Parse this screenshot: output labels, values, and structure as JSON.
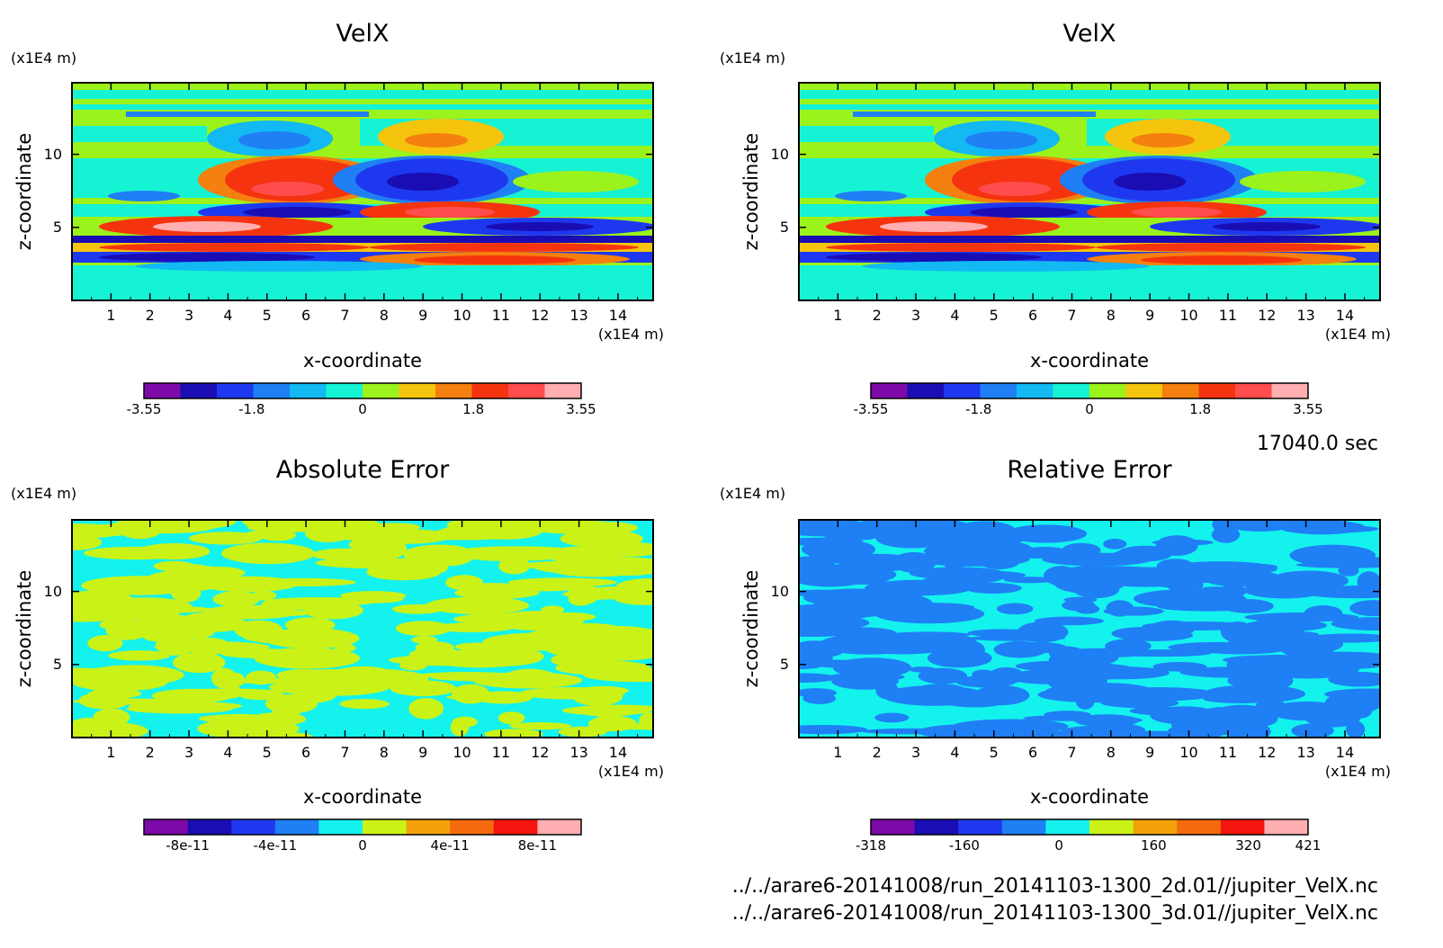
{
  "time_label": "17040.0 sec",
  "files": [
    "../../arare6-20141008/run_20141103-1300_2d.01//jupiter_VelX.nc",
    "../../arare6-20141008/run_20141103-1300_3d.01//jupiter_VelX.nc"
  ],
  "chart_data": [
    {
      "type": "heatmap",
      "title": "VelX",
      "xlabel": "x-coordinate",
      "ylabel": "z-coordinate",
      "x_unit": "(x1E4 m)",
      "y_unit": "(x1E4 m)",
      "xlim": [
        0,
        14.9
      ],
      "ylim": [
        0,
        14.9
      ],
      "x_ticks": [
        1,
        2,
        3,
        4,
        5,
        6,
        7,
        8,
        9,
        10,
        11,
        12,
        13,
        14
      ],
      "y_ticks": [
        5,
        10
      ],
      "colorbar": {
        "ticks": [
          "-3.55",
          "-1.8",
          "0",
          "1.8",
          "3.55"
        ],
        "min": -3.55,
        "max": 3.55,
        "colors": [
          "#7d0aa8",
          "#1a0db3",
          "#1e38f0",
          "#1f7ff5",
          "#12b9f2",
          "#15f2d4",
          "#9cf21b",
          "#f4c50c",
          "#f4800f",
          "#f5340f",
          "#ff4d4d",
          "#ffaeb1"
        ]
      }
    },
    {
      "type": "heatmap",
      "title": "VelX",
      "xlabel": "x-coordinate",
      "ylabel": "z-coordinate",
      "x_unit": "(x1E4 m)",
      "y_unit": "(x1E4 m)",
      "xlim": [
        0,
        14.9
      ],
      "ylim": [
        0,
        14.9
      ],
      "x_ticks": [
        1,
        2,
        3,
        4,
        5,
        6,
        7,
        8,
        9,
        10,
        11,
        12,
        13,
        14
      ],
      "y_ticks": [
        5,
        10
      ],
      "colorbar": {
        "ticks": [
          "-3.55",
          "-1.8",
          "0",
          "1.8",
          "3.55"
        ],
        "min": -3.55,
        "max": 3.55,
        "colors": [
          "#7d0aa8",
          "#1a0db3",
          "#1e38f0",
          "#1f7ff5",
          "#12b9f2",
          "#15f2d4",
          "#9cf21b",
          "#f4c50c",
          "#f4800f",
          "#f5340f",
          "#ff4d4d",
          "#ffaeb1"
        ]
      }
    },
    {
      "type": "heatmap",
      "title": "Absolute Error",
      "xlabel": "x-coordinate",
      "ylabel": "z-coordinate",
      "x_unit": "(x1E4 m)",
      "y_unit": "(x1E4 m)",
      "xlim": [
        0,
        14.9
      ],
      "ylim": [
        0,
        14.9
      ],
      "x_ticks": [
        1,
        2,
        3,
        4,
        5,
        6,
        7,
        8,
        9,
        10,
        11,
        12,
        13,
        14
      ],
      "y_ticks": [
        5,
        10
      ],
      "colorbar": {
        "ticks": [
          "-8e-11",
          "-4e-11",
          "0",
          "4e-11",
          "8e-11"
        ],
        "min": -1e-10,
        "max": 1e-10,
        "colors": [
          "#7d0aa8",
          "#1a0db3",
          "#1e38f0",
          "#1f7ff5",
          "#14f2ee",
          "#cbf216",
          "#f4a20c",
          "#f56a0f",
          "#f5150f",
          "#ffaeb1"
        ]
      }
    },
    {
      "type": "heatmap",
      "title": "Relative Error",
      "xlabel": "x-coordinate",
      "ylabel": "z-coordinate",
      "x_unit": "(x1E4 m)",
      "y_unit": "(x1E4 m)",
      "xlim": [
        0,
        14.9
      ],
      "ylim": [
        0,
        14.9
      ],
      "x_ticks": [
        1,
        2,
        3,
        4,
        5,
        6,
        7,
        8,
        9,
        10,
        11,
        12,
        13,
        14
      ],
      "y_ticks": [
        5,
        10
      ],
      "colorbar": {
        "ticks": [
          "-318",
          "-160",
          "0",
          "160",
          "320",
          "421"
        ],
        "min": -318,
        "max": 421,
        "colors": [
          "#7d0aa8",
          "#1a0db3",
          "#1e38f0",
          "#1f7ff5",
          "#14f2ee",
          "#cbf216",
          "#f4a20c",
          "#f56a0f",
          "#f5150f",
          "#ffaeb1"
        ]
      }
    }
  ]
}
